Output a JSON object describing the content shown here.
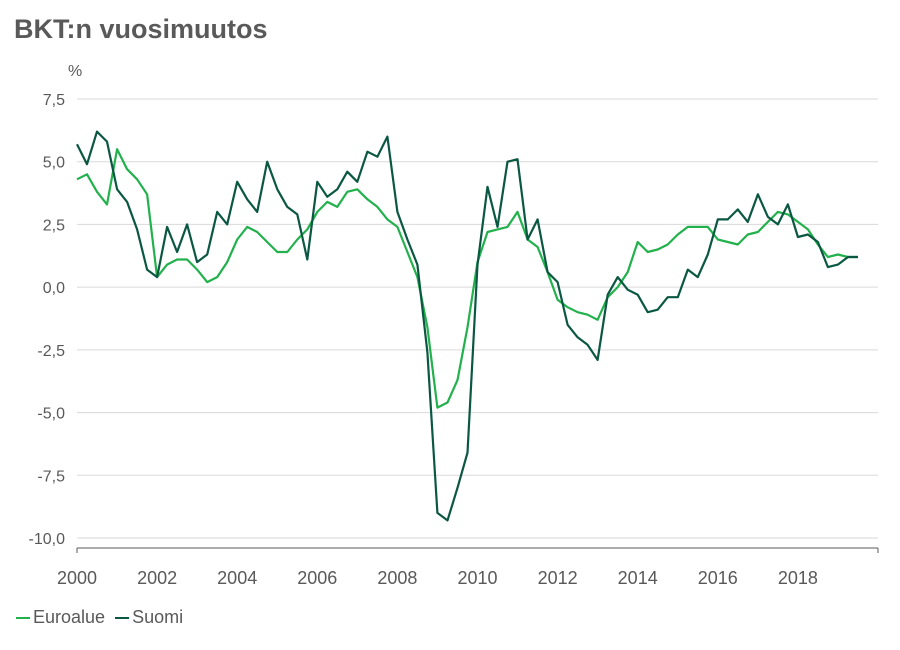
{
  "title": "BKT:n vuosimuutos",
  "chart_data": {
    "type": "line",
    "title": "BKT:n vuosimuutos",
    "ylabel": "%",
    "xlabel": "",
    "ylim": [
      -10.0,
      7.5
    ],
    "yticks": [
      7.5,
      5.0,
      2.5,
      0.0,
      -2.5,
      -5.0,
      -7.5,
      -10.0
    ],
    "ytick_labels": [
      "7,5",
      "5,0",
      "2,5",
      "0,0",
      "-2,5",
      "-5,0",
      "-7,5",
      "-10,0"
    ],
    "xlim": [
      2000.0,
      2020.0
    ],
    "xticks": [
      2000,
      2002,
      2004,
      2006,
      2008,
      2010,
      2012,
      2014,
      2016,
      2018
    ],
    "xtick_labels": [
      "2000",
      "2002",
      "2004",
      "2006",
      "2008",
      "2010",
      "2012",
      "2014",
      "2016",
      "2018"
    ],
    "grid": true,
    "legend": "bottom-left",
    "x": [
      2000.0,
      2000.25,
      2000.5,
      2000.75,
      2001.0,
      2001.25,
      2001.5,
      2001.75,
      2002.0,
      2002.25,
      2002.5,
      2002.75,
      2003.0,
      2003.25,
      2003.5,
      2003.75,
      2004.0,
      2004.25,
      2004.5,
      2004.75,
      2005.0,
      2005.25,
      2005.5,
      2005.75,
      2006.0,
      2006.25,
      2006.5,
      2006.75,
      2007.0,
      2007.25,
      2007.5,
      2007.75,
      2008.0,
      2008.25,
      2008.5,
      2008.75,
      2009.0,
      2009.25,
      2009.5,
      2009.75,
      2010.0,
      2010.25,
      2010.5,
      2010.75,
      2011.0,
      2011.25,
      2011.5,
      2011.75,
      2012.0,
      2012.25,
      2012.5,
      2012.75,
      2013.0,
      2013.25,
      2013.5,
      2013.75,
      2014.0,
      2014.25,
      2014.5,
      2014.75,
      2015.0,
      2015.25,
      2015.5,
      2015.75,
      2016.0,
      2016.25,
      2016.5,
      2016.75,
      2017.0,
      2017.25,
      2017.5,
      2017.75,
      2018.0,
      2018.25,
      2018.5,
      2018.75,
      2019.0,
      2019.25,
      2019.5
    ],
    "series": [
      {
        "name": "Euroalue",
        "color": "#22b14c",
        "values": [
          4.3,
          4.5,
          3.8,
          3.3,
          5.5,
          4.7,
          4.3,
          3.7,
          0.4,
          0.9,
          1.1,
          1.1,
          0.7,
          0.2,
          0.4,
          1.0,
          1.9,
          2.4,
          2.2,
          1.8,
          1.4,
          1.4,
          1.9,
          2.3,
          3.0,
          3.4,
          3.2,
          3.8,
          3.9,
          3.5,
          3.2,
          2.7,
          2.4,
          1.4,
          0.4,
          -1.6,
          -4.8,
          -4.6,
          -3.7,
          -1.6,
          1.0,
          2.2,
          2.3,
          2.4,
          3.0,
          1.9,
          1.6,
          0.6,
          -0.5,
          -0.8,
          -1.0,
          -1.1,
          -1.3,
          -0.4,
          0.0,
          0.6,
          1.8,
          1.4,
          1.5,
          1.7,
          2.1,
          2.4,
          2.4,
          2.4,
          1.9,
          1.8,
          1.7,
          2.1,
          2.2,
          2.6,
          3.0,
          2.9,
          2.6,
          2.3,
          1.7,
          1.2,
          1.3,
          1.2,
          1.2
        ]
      },
      {
        "name": "Suomi",
        "color": "#0b5842",
        "values": [
          5.7,
          4.9,
          6.2,
          5.8,
          3.9,
          3.4,
          2.3,
          0.7,
          0.4,
          2.4,
          1.4,
          2.5,
          1.0,
          1.3,
          3.0,
          2.5,
          4.2,
          3.5,
          3.0,
          5.0,
          3.9,
          3.2,
          2.9,
          1.1,
          4.2,
          3.6,
          3.9,
          4.6,
          4.2,
          5.4,
          5.2,
          6.0,
          3.0,
          1.9,
          0.9,
          -2.6,
          -9.0,
          -9.3,
          -8.0,
          -6.6,
          0.9,
          4.0,
          2.4,
          5.0,
          5.1,
          1.9,
          2.7,
          0.6,
          0.2,
          -1.5,
          -2.0,
          -2.3,
          -2.9,
          -0.3,
          0.4,
          -0.1,
          -0.3,
          -1.0,
          -0.9,
          -0.4,
          -0.4,
          0.7,
          0.4,
          1.3,
          2.7,
          2.7,
          3.1,
          2.6,
          3.7,
          2.8,
          2.5,
          3.3,
          2.0,
          2.1,
          1.8,
          0.8,
          0.9,
          1.2,
          1.2
        ]
      }
    ]
  }
}
